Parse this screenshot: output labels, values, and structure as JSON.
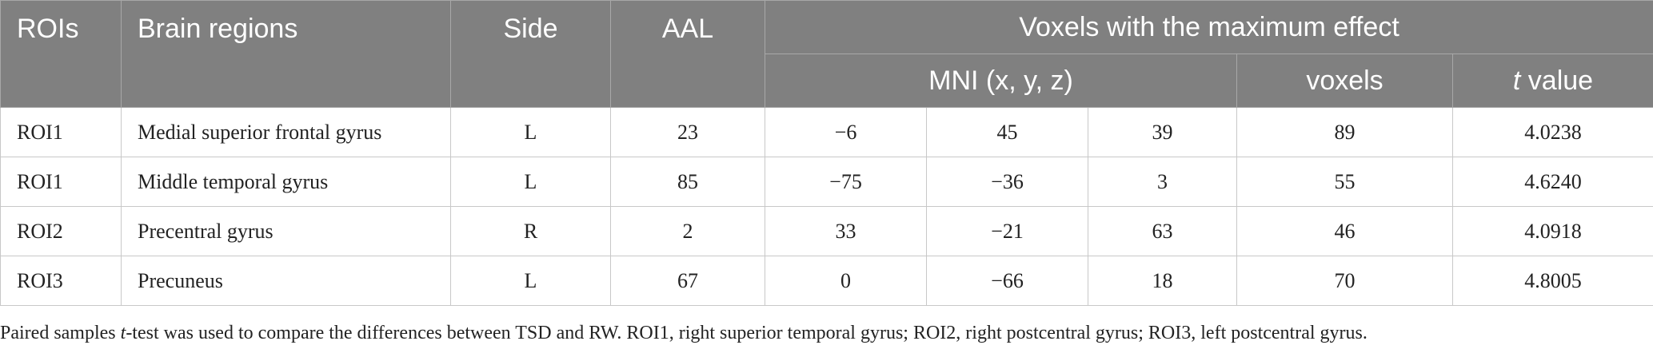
{
  "header": {
    "rois": "ROIs",
    "brain_regions": "Brain regions",
    "side": "Side",
    "aal": "AAL",
    "group": "Voxels with the maximum effect",
    "mni": "MNI (x, y, z)",
    "voxels": "voxels",
    "t_italic": "t",
    "t_rest": " value"
  },
  "rows": [
    {
      "roi": "ROI1",
      "region": "Medial superior frontal gyrus",
      "side": "L",
      "aal": "23",
      "x": "−6",
      "y": "45",
      "z": "39",
      "voxels": "89",
      "t": "4.0238"
    },
    {
      "roi": "ROI1",
      "region": "Middle temporal gyrus",
      "side": "L",
      "aal": "85",
      "x": "−75",
      "y": "−36",
      "z": "3",
      "voxels": "55",
      "t": "4.6240"
    },
    {
      "roi": "ROI2",
      "region": "Precentral gyrus",
      "side": "R",
      "aal": "2",
      "x": "33",
      "y": "−21",
      "z": "63",
      "voxels": "46",
      "t": "4.0918"
    },
    {
      "roi": "ROI3",
      "region": "Precuneus",
      "side": "L",
      "aal": "67",
      "x": "0",
      "y": "−66",
      "z": "18",
      "voxels": "70",
      "t": "4.8005"
    }
  ],
  "footnote": {
    "part1": "Paired samples ",
    "italic": "t",
    "part2": "-test was used to compare the differences between TSD and RW. ROI1, right superior temporal gyrus; ROI2, right postcentral gyrus; ROI3, left postcentral gyrus."
  }
}
